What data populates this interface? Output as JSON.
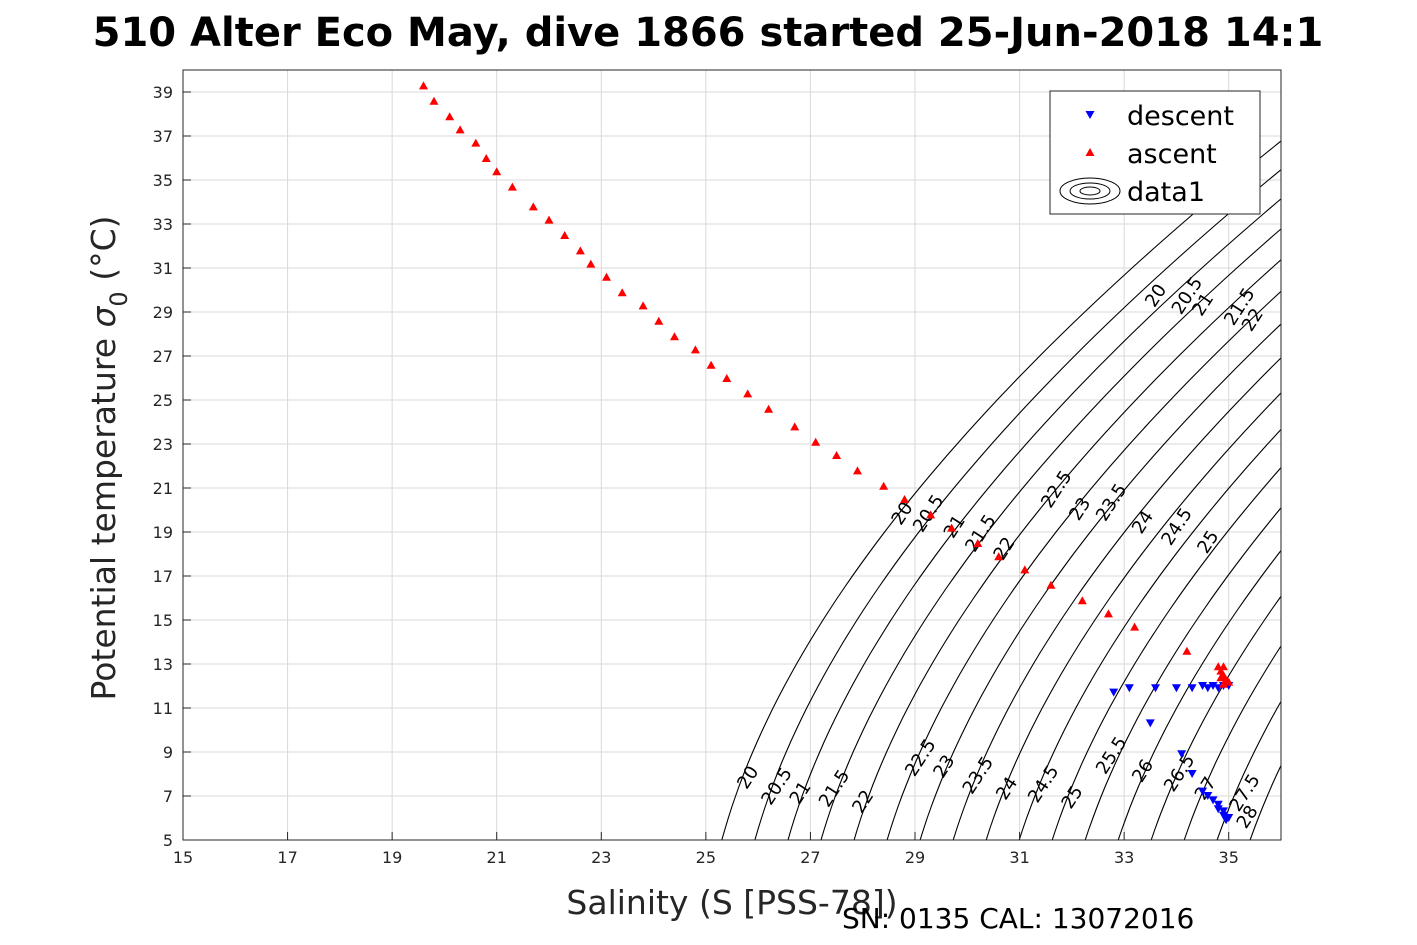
{
  "colors": {
    "descent": "#0000ff",
    "ascent": "#ff0000",
    "contour": "#000000",
    "grid": "#d9d9d9",
    "axis": "#262626"
  },
  "footer": "SN: 0135  CAL: 13072016",
  "chart_data": {
    "type": "scatter",
    "title": "510 Alter Eco May, dive 1866 started 25-Jun-2018 14:1",
    "xlabel": "Salinity (S [PSS-78])",
    "ylabel_main": "Potential temperature ",
    "ylabel_sigma": "σ",
    "ylabel_sub": "0",
    "ylabel_unit": " (°C)",
    "xlim": [
      15,
      36
    ],
    "ylim": [
      5,
      40
    ],
    "xticks": [
      15,
      17,
      19,
      21,
      23,
      25,
      27,
      29,
      31,
      33,
      35
    ],
    "yticks": [
      5,
      7,
      9,
      11,
      13,
      15,
      17,
      19,
      21,
      23,
      25,
      27,
      29,
      31,
      33,
      35,
      37,
      39
    ],
    "grid": true,
    "legend_position": "top-right",
    "legend": [
      "descent",
      "ascent",
      "data1"
    ],
    "series": [
      {
        "name": "descent",
        "marker": "triangle-down",
        "points": [
          [
            32.8,
            11.7
          ],
          [
            33.1,
            11.9
          ],
          [
            33.5,
            10.3
          ],
          [
            33.6,
            11.9
          ],
          [
            34.0,
            11.9
          ],
          [
            34.3,
            11.9
          ],
          [
            34.5,
            12.0
          ],
          [
            34.6,
            11.9
          ],
          [
            34.7,
            12.0
          ],
          [
            34.8,
            11.9
          ],
          [
            34.9,
            12.0
          ],
          [
            35.0,
            12.0
          ],
          [
            34.1,
            8.9
          ],
          [
            34.3,
            8.0
          ],
          [
            34.5,
            7.2
          ],
          [
            34.6,
            7.0
          ],
          [
            34.7,
            6.8
          ],
          [
            34.8,
            6.6
          ],
          [
            34.8,
            6.4
          ],
          [
            34.9,
            6.3
          ],
          [
            34.9,
            6.1
          ],
          [
            35.0,
            6.0
          ],
          [
            34.95,
            5.9
          ]
        ]
      },
      {
        "name": "ascent",
        "marker": "triangle-up",
        "points": [
          [
            19.6,
            39.3
          ],
          [
            19.8,
            38.6
          ],
          [
            20.1,
            37.9
          ],
          [
            20.3,
            37.3
          ],
          [
            20.6,
            36.7
          ],
          [
            20.8,
            36.0
          ],
          [
            21.0,
            35.4
          ],
          [
            21.3,
            34.7
          ],
          [
            21.7,
            33.8
          ],
          [
            22.0,
            33.2
          ],
          [
            22.3,
            32.5
          ],
          [
            22.6,
            31.8
          ],
          [
            22.8,
            31.2
          ],
          [
            23.1,
            30.6
          ],
          [
            23.4,
            29.9
          ],
          [
            23.8,
            29.3
          ],
          [
            24.1,
            28.6
          ],
          [
            24.4,
            27.9
          ],
          [
            24.8,
            27.3
          ],
          [
            25.1,
            26.6
          ],
          [
            25.4,
            26.0
          ],
          [
            25.8,
            25.3
          ],
          [
            26.2,
            24.6
          ],
          [
            26.7,
            23.8
          ],
          [
            27.1,
            23.1
          ],
          [
            27.5,
            22.5
          ],
          [
            27.9,
            21.8
          ],
          [
            28.4,
            21.1
          ],
          [
            28.8,
            20.5
          ],
          [
            29.3,
            19.8
          ],
          [
            29.7,
            19.2
          ],
          [
            30.2,
            18.5
          ],
          [
            30.6,
            17.9
          ],
          [
            31.1,
            17.3
          ],
          [
            31.6,
            16.6
          ],
          [
            32.2,
            15.9
          ],
          [
            32.7,
            15.3
          ],
          [
            33.2,
            14.7
          ],
          [
            34.2,
            13.6
          ],
          [
            34.8,
            12.9
          ],
          [
            34.85,
            12.7
          ],
          [
            34.9,
            12.5
          ],
          [
            34.95,
            12.3
          ],
          [
            34.9,
            12.1
          ],
          [
            35.0,
            12.2
          ],
          [
            34.9,
            12.9
          ],
          [
            34.85,
            12.4
          ]
        ]
      },
      {
        "name": "data1",
        "type": "contour",
        "quantity": "sigma0",
        "levels": [
          20,
          20.5,
          21,
          21.5,
          22,
          22.5,
          23,
          23.5,
          24,
          24.5,
          25,
          25.5,
          26,
          26.5,
          27,
          27.5,
          28
        ],
        "contour_labels": [
          {
            "text": "20",
            "s": 28.85,
            "t": 19.7
          },
          {
            "text": "20.5",
            "s": 29.35,
            "t": 19.7
          },
          {
            "text": "21",
            "s": 29.85,
            "t": 19.1
          },
          {
            "text": "21.5",
            "s": 30.35,
            "t": 18.8
          },
          {
            "text": "22",
            "s": 30.8,
            "t": 18.1
          },
          {
            "text": "22.5",
            "s": 31.8,
            "t": 20.8
          },
          {
            "text": "23",
            "s": 32.25,
            "t": 19.9
          },
          {
            "text": "23.5",
            "s": 32.85,
            "t": 20.2
          },
          {
            "text": "24",
            "s": 33.45,
            "t": 19.3
          },
          {
            "text": "24.5",
            "s": 34.1,
            "t": 19.1
          },
          {
            "text": "25",
            "s": 34.7,
            "t": 18.4
          },
          {
            "text": "20",
            "s": 33.7,
            "t": 29.6
          },
          {
            "text": "20.5",
            "s": 34.3,
            "t": 29.6
          },
          {
            "text": "21",
            "s": 34.6,
            "t": 29.2
          },
          {
            "text": "21.5",
            "s": 35.3,
            "t": 29.1
          },
          {
            "text": "22",
            "s": 35.55,
            "t": 28.5
          },
          {
            "text": "20",
            "s": 25.9,
            "t": 7.7
          },
          {
            "text": "20.5",
            "s": 26.45,
            "t": 7.3
          },
          {
            "text": "21",
            "s": 26.9,
            "t": 7.0
          },
          {
            "text": "21.5",
            "s": 27.55,
            "t": 7.2
          },
          {
            "text": "22",
            "s": 28.1,
            "t": 6.6
          },
          {
            "text": "22.5",
            "s": 29.2,
            "t": 8.6
          },
          {
            "text": "23",
            "s": 29.65,
            "t": 8.2
          },
          {
            "text": "23.5",
            "s": 30.3,
            "t": 7.8
          },
          {
            "text": "24",
            "s": 30.85,
            "t": 7.2
          },
          {
            "text": "24.5",
            "s": 31.55,
            "t": 7.4
          },
          {
            "text": "25",
            "s": 32.1,
            "t": 6.8
          },
          {
            "text": "25.5",
            "s": 32.85,
            "t": 8.7
          },
          {
            "text": "26",
            "s": 33.45,
            "t": 8.0
          },
          {
            "text": "26.5",
            "s": 34.15,
            "t": 7.9
          },
          {
            "text": "27",
            "s": 34.65,
            "t": 7.2
          },
          {
            "text": "27.5",
            "s": 35.4,
            "t": 7.0
          },
          {
            "text": "28",
            "s": 35.45,
            "t": 5.9
          }
        ]
      }
    ]
  }
}
